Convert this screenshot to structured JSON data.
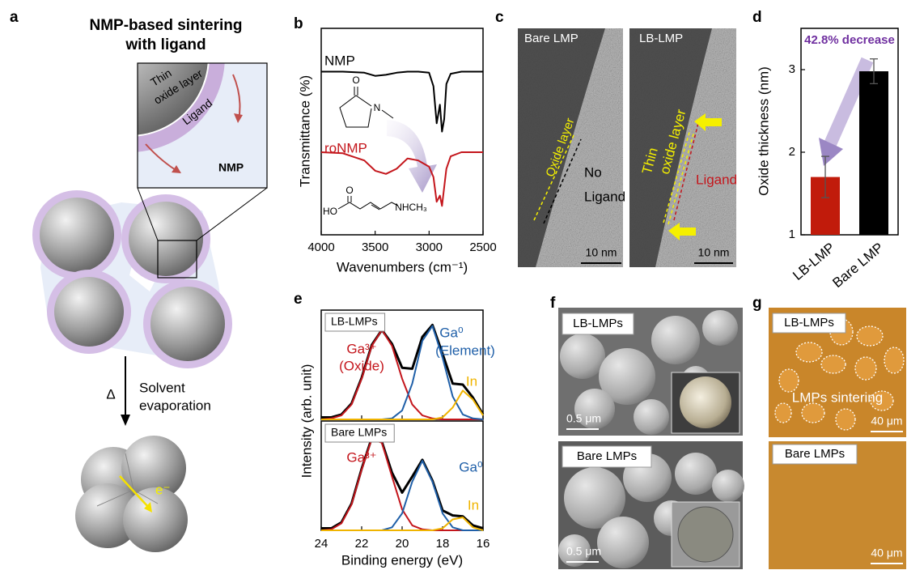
{
  "panel_labels": [
    "a",
    "b",
    "c",
    "d",
    "e",
    "f",
    "g"
  ],
  "panel_a": {
    "title": [
      "NMP-based sintering",
      "with ligand"
    ],
    "oxide": [
      "Thin",
      "oxide layer"
    ],
    "ligand": "Ligand",
    "nmp": "NMP",
    "delta": "Δ",
    "step": [
      "Solvent",
      "evaporation"
    ],
    "electron": "e⁻"
  },
  "panel_c": {
    "left": {
      "title": "Bare LMP",
      "oxide": "Oxide layer",
      "no_ligand": [
        "No",
        "Ligand"
      ],
      "scale": "10 nm"
    },
    "right": {
      "title": "LB-LMP",
      "oxide": [
        "Thin",
        "oxide layer"
      ],
      "ligand": "Ligand",
      "scale": "10 nm"
    }
  },
  "panel_f": {
    "top": {
      "label": "LB-LMPs",
      "scale": "0.5 μm"
    },
    "bottom": {
      "label": "Bare LMPs",
      "scale": "0.5 μm"
    }
  },
  "panel_g": {
    "top": {
      "label": "LB-LMPs",
      "note": "LMPs sintering",
      "scale": "40 μm"
    },
    "bottom": {
      "label": "Bare LMPs",
      "scale": "40 μm"
    }
  },
  "chart_data": [
    {
      "type": "line",
      "xlabel": "Wavenumbers (cm⁻¹)",
      "ylabel": "Transmittance (%)",
      "x": [
        4000,
        3800,
        3600,
        3500,
        3400,
        3300,
        3200,
        3100,
        3000,
        2960,
        2930,
        2900,
        2880,
        2860,
        2840,
        2800,
        2700,
        2600,
        2500
      ],
      "xlim": [
        4000,
        2500
      ],
      "xticks": [
        4000,
        3500,
        3000,
        2500
      ],
      "ylim": [
        0,
        10
      ],
      "series": [
        {
          "name": "NMP",
          "color": "#000000",
          "values": [
            7.9,
            7.9,
            7.85,
            7.7,
            7.75,
            7.85,
            7.9,
            7.9,
            7.85,
            7.2,
            5.4,
            6.3,
            5.0,
            5.6,
            7.3,
            7.8,
            7.9,
            7.9,
            7.9
          ]
        },
        {
          "name": "roNMP",
          "color": "#c4161c",
          "values": [
            4.0,
            3.95,
            3.6,
            3.1,
            2.95,
            3.2,
            3.7,
            3.6,
            3.3,
            2.8,
            1.6,
            1.9,
            1.4,
            2.3,
            3.2,
            3.8,
            4.0,
            4.0,
            4.0
          ]
        }
      ],
      "annotations": [
        "O",
        "N",
        "O",
        "HO",
        "NHCH₃"
      ]
    },
    {
      "type": "bar",
      "ylabel": "Oxide thickness (nm)",
      "categories": [
        "LB-LMP",
        "Bare LMP"
      ],
      "values": [
        1.7,
        2.98
      ],
      "errors": [
        0.25,
        0.15
      ],
      "colors": [
        "#c11b0b",
        "#000000"
      ],
      "ylim": [
        1,
        3.5
      ],
      "yticks": [
        1,
        2,
        3
      ],
      "annotation": "42.8% decrease",
      "annotation_color": "#7030a0"
    },
    {
      "type": "line",
      "xlabel": "Binding energy (eV)",
      "ylabel": "Intensity (arb. unit)",
      "x": [
        24,
        23.5,
        23,
        22.5,
        22,
        21.5,
        21,
        20.5,
        20,
        19.5,
        19,
        18.5,
        18,
        17.5,
        17,
        16.5,
        16
      ],
      "xlim": [
        24,
        16
      ],
      "xticks": [
        24,
        22,
        20,
        18,
        16
      ],
      "ylim": [
        0,
        1.1
      ],
      "subplots": [
        {
          "label": "LB-LMPs",
          "series": [
            {
              "color": "#000000",
              "values": [
                0.02,
                0.02,
                0.05,
                0.16,
                0.42,
                0.75,
                0.9,
                0.76,
                0.52,
                0.51,
                0.83,
                0.95,
                0.66,
                0.36,
                0.35,
                0.22,
                0.05
              ]
            },
            {
              "name": "Ga³⁺",
              "color": "#c4161c",
              "values": [
                0,
                0.01,
                0.04,
                0.15,
                0.41,
                0.74,
                0.9,
                0.74,
                0.41,
                0.15,
                0.04,
                0.01,
                0,
                0,
                0,
                0,
                0
              ]
            },
            {
              "name": "Ga⁰",
              "color": "#1f5fa8",
              "values": [
                0,
                0,
                0,
                0,
                0,
                0,
                0,
                0.01,
                0.09,
                0.36,
                0.79,
                0.94,
                0.62,
                0.23,
                0.05,
                0.01,
                0
              ]
            },
            {
              "name": "In",
              "color": "#f0b400",
              "values": [
                0,
                0,
                0,
                0,
                0,
                0,
                0,
                0,
                0,
                0,
                0,
                0,
                0.02,
                0.12,
                0.29,
                0.2,
                0.04
              ]
            }
          ],
          "notes": [
            "(Oxide)",
            "(Element)"
          ]
        },
        {
          "label": "Bare LMPs",
          "series": [
            {
              "color": "#000000",
              "values": [
                0.02,
                0.02,
                0.08,
                0.27,
                0.62,
                0.93,
                0.89,
                0.58,
                0.38,
                0.54,
                0.71,
                0.5,
                0.2,
                0.15,
                0.14,
                0.05,
                0.02
              ]
            },
            {
              "name": "Ga³⁺",
              "color": "#c4161c",
              "values": [
                0,
                0.01,
                0.07,
                0.26,
                0.61,
                0.92,
                0.88,
                0.54,
                0.21,
                0.05,
                0.01,
                0,
                0,
                0,
                0,
                0,
                0
              ]
            },
            {
              "name": "Ga⁰",
              "color": "#1f5fa8",
              "values": [
                0,
                0,
                0,
                0,
                0,
                0,
                0,
                0.03,
                0.17,
                0.49,
                0.7,
                0.49,
                0.17,
                0.03,
                0,
                0,
                0
              ]
            },
            {
              "name": "In",
              "color": "#f0b400",
              "values": [
                0,
                0,
                0,
                0,
                0,
                0,
                0,
                0,
                0,
                0,
                0,
                0,
                0.02,
                0.11,
                0.13,
                0.03,
                0
              ]
            }
          ]
        }
      ]
    }
  ]
}
